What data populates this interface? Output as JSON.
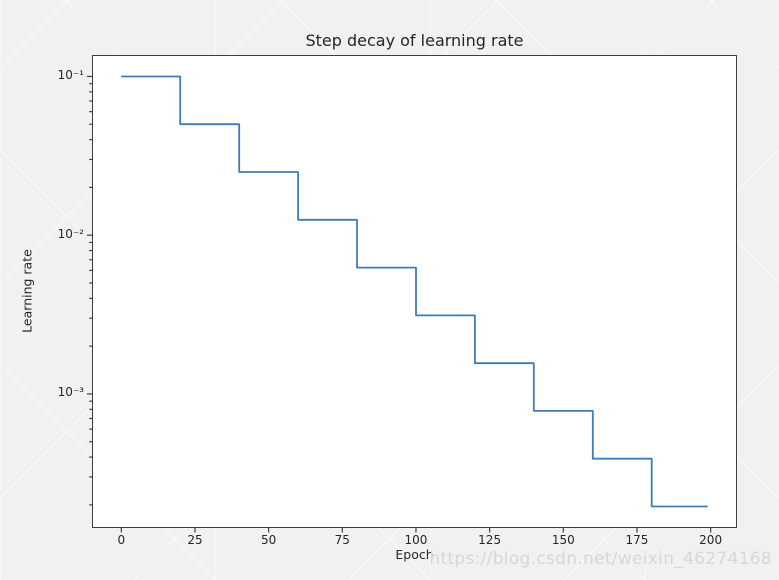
{
  "figure": {
    "background_color": "#f1f1f1",
    "watermark": "https://blog.csdn.net/weixin_46274168"
  },
  "chart_data": {
    "type": "line",
    "title": "Step decay of learning rate",
    "xlabel": "Epoch",
    "ylabel": "Learning rate",
    "yscale": "log",
    "grid": false,
    "legend": "none",
    "line_color": "#3f7cb7",
    "axis_color": "#3d3d3d",
    "text_color": "#262626",
    "xlim": [
      -9.95,
      208.95
    ],
    "ylim": [
      0.000143,
      0.1365
    ],
    "x_ticks": [
      0,
      25,
      50,
      75,
      100,
      125,
      150,
      175,
      200
    ],
    "y_ticks": [
      {
        "value": 0.1,
        "label": "10⁻¹"
      },
      {
        "value": 0.01,
        "label": "10⁻²"
      },
      {
        "value": 0.001,
        "label": "10⁻³"
      }
    ],
    "series": [
      {
        "name": "learning rate",
        "step_mode": "post",
        "decay_factor": 0.5,
        "step_size_epochs": 20,
        "epoch_breakpoints": [
          0,
          20,
          40,
          60,
          80,
          100,
          120,
          140,
          160,
          180,
          199
        ],
        "lr_values": [
          0.1,
          0.05,
          0.025,
          0.0125,
          0.00625,
          0.003125,
          0.0015625,
          0.00078125,
          0.000390625,
          0.0001953125
        ]
      }
    ]
  }
}
